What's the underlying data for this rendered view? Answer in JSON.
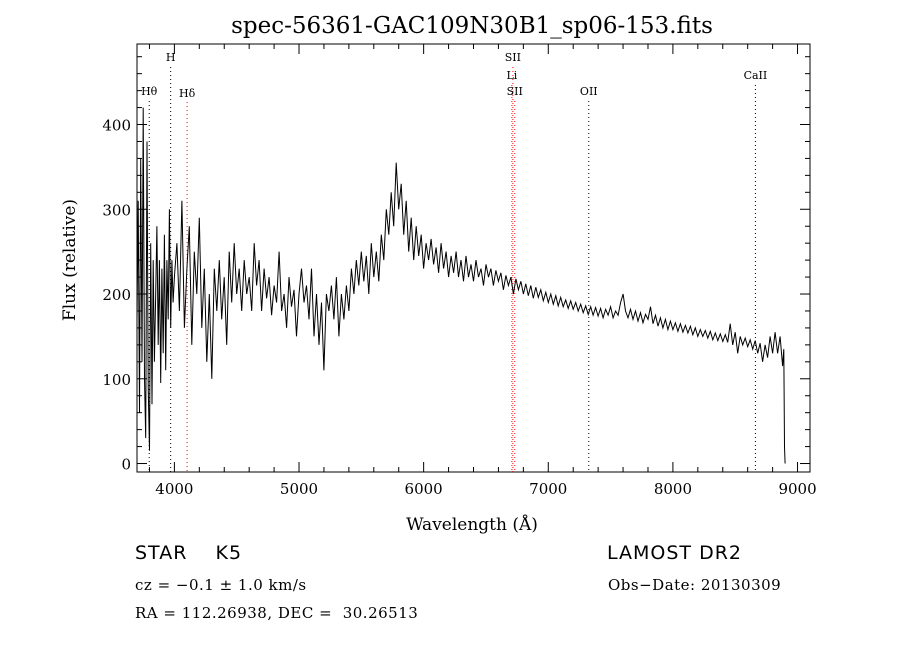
{
  "chart_data": {
    "type": "line",
    "title": "spec-56361-GAC109N30B1_sp06-153.fits",
    "xlabel": "Wavelength (Å)",
    "ylabel": "Flux (relative)",
    "xlim": [
      3700,
      9100
    ],
    "ylim": [
      -10,
      495
    ],
    "x_ticks": [
      4000,
      5000,
      6000,
      7000,
      8000,
      9000
    ],
    "y_ticks": [
      0,
      100,
      200,
      300,
      400
    ],
    "line_color": "#000000",
    "series": [
      {
        "points": [
          [
            3700,
            170
          ],
          [
            3710,
            310
          ],
          [
            3720,
            60
          ],
          [
            3730,
            360
          ],
          [
            3740,
            120
          ],
          [
            3750,
            420
          ],
          [
            3760,
            100
          ],
          [
            3770,
            30
          ],
          [
            3780,
            380
          ],
          [
            3790,
            90
          ],
          [
            3800,
            15
          ],
          [
            3810,
            260
          ],
          [
            3820,
            70
          ],
          [
            3830,
            240
          ],
          [
            3840,
            120
          ],
          [
            3850,
            200
          ],
          [
            3860,
            280
          ],
          [
            3870,
            140
          ],
          [
            3880,
            240
          ],
          [
            3890,
            95
          ],
          [
            3900,
            230
          ],
          [
            3910,
            130
          ],
          [
            3920,
            270
          ],
          [
            3930,
            110
          ],
          [
            3940,
            240
          ],
          [
            3950,
            170
          ],
          [
            3960,
            300
          ],
          [
            3970,
            160
          ],
          [
            3980,
            240
          ],
          [
            3990,
            190
          ],
          [
            4000,
            220
          ],
          [
            4020,
            260
          ],
          [
            4040,
            180
          ],
          [
            4060,
            310
          ],
          [
            4080,
            160
          ],
          [
            4100,
            230
          ],
          [
            4120,
            280
          ],
          [
            4140,
            140
          ],
          [
            4160,
            250
          ],
          [
            4180,
            200
          ],
          [
            4200,
            290
          ],
          [
            4220,
            160
          ],
          [
            4240,
            230
          ],
          [
            4260,
            120
          ],
          [
            4280,
            200
          ],
          [
            4300,
            100
          ],
          [
            4320,
            230
          ],
          [
            4340,
            180
          ],
          [
            4360,
            240
          ],
          [
            4380,
            170
          ],
          [
            4400,
            220
          ],
          [
            4420,
            140
          ],
          [
            4440,
            250
          ],
          [
            4460,
            190
          ],
          [
            4480,
            260
          ],
          [
            4500,
            200
          ],
          [
            4520,
            230
          ],
          [
            4540,
            180
          ],
          [
            4560,
            240
          ],
          [
            4580,
            200
          ],
          [
            4600,
            220
          ],
          [
            4620,
            180
          ],
          [
            4640,
            260
          ],
          [
            4660,
            210
          ],
          [
            4680,
            240
          ],
          [
            4700,
            180
          ],
          [
            4720,
            230
          ],
          [
            4740,
            195
          ],
          [
            4760,
            220
          ],
          [
            4780,
            175
          ],
          [
            4800,
            210
          ],
          [
            4820,
            190
          ],
          [
            4840,
            250
          ],
          [
            4860,
            180
          ],
          [
            4880,
            200
          ],
          [
            4900,
            160
          ],
          [
            4920,
            220
          ],
          [
            4940,
            185
          ],
          [
            4960,
            205
          ],
          [
            4980,
            150
          ],
          [
            5000,
            200
          ],
          [
            5020,
            230
          ],
          [
            5040,
            190
          ],
          [
            5060,
            210
          ],
          [
            5080,
            170
          ],
          [
            5100,
            230
          ],
          [
            5120,
            150
          ],
          [
            5140,
            200
          ],
          [
            5160,
            140
          ],
          [
            5180,
            190
          ],
          [
            5200,
            110
          ],
          [
            5220,
            200
          ],
          [
            5240,
            180
          ],
          [
            5260,
            210
          ],
          [
            5280,
            170
          ],
          [
            5300,
            220
          ],
          [
            5320,
            150
          ],
          [
            5340,
            200
          ],
          [
            5360,
            170
          ],
          [
            5380,
            210
          ],
          [
            5400,
            180
          ],
          [
            5420,
            230
          ],
          [
            5440,
            200
          ],
          [
            5460,
            240
          ],
          [
            5480,
            210
          ],
          [
            5500,
            250
          ],
          [
            5520,
            215
          ],
          [
            5540,
            245
          ],
          [
            5560,
            200
          ],
          [
            5580,
            260
          ],
          [
            5600,
            220
          ],
          [
            5620,
            250
          ],
          [
            5640,
            215
          ],
          [
            5660,
            270
          ],
          [
            5680,
            240
          ],
          [
            5700,
            300
          ],
          [
            5720,
            270
          ],
          [
            5740,
            320
          ],
          [
            5760,
            280
          ],
          [
            5780,
            355
          ],
          [
            5800,
            300
          ],
          [
            5820,
            330
          ],
          [
            5840,
            270
          ],
          [
            5860,
            310
          ],
          [
            5880,
            250
          ],
          [
            5900,
            290
          ],
          [
            5920,
            240
          ],
          [
            5940,
            280
          ],
          [
            5960,
            245
          ],
          [
            5980,
            270
          ],
          [
            6000,
            230
          ],
          [
            6020,
            260
          ],
          [
            6040,
            240
          ],
          [
            6060,
            265
          ],
          [
            6080,
            235
          ],
          [
            6100,
            255
          ],
          [
            6120,
            225
          ],
          [
            6140,
            260
          ],
          [
            6160,
            230
          ],
          [
            6180,
            250
          ],
          [
            6200,
            220
          ],
          [
            6220,
            245
          ],
          [
            6240,
            225
          ],
          [
            6260,
            250
          ],
          [
            6280,
            220
          ],
          [
            6300,
            240
          ],
          [
            6320,
            215
          ],
          [
            6340,
            245
          ],
          [
            6360,
            220
          ],
          [
            6380,
            235
          ],
          [
            6400,
            215
          ],
          [
            6420,
            240
          ],
          [
            6440,
            220
          ],
          [
            6460,
            230
          ],
          [
            6480,
            210
          ],
          [
            6500,
            235
          ],
          [
            6520,
            220
          ],
          [
            6540,
            230
          ],
          [
            6560,
            210
          ],
          [
            6580,
            228
          ],
          [
            6600,
            215
          ],
          [
            6620,
            225
          ],
          [
            6640,
            205
          ],
          [
            6660,
            222
          ],
          [
            6680,
            210
          ],
          [
            6700,
            220
          ],
          [
            6720,
            200
          ],
          [
            6740,
            218
          ],
          [
            6760,
            205
          ],
          [
            6780,
            215
          ],
          [
            6800,
            200
          ],
          [
            6820,
            212
          ],
          [
            6840,
            198
          ],
          [
            6860,
            210
          ],
          [
            6880,
            195
          ],
          [
            6900,
            208
          ],
          [
            6920,
            196
          ],
          [
            6940,
            205
          ],
          [
            6960,
            192
          ],
          [
            6980,
            202
          ],
          [
            7000,
            190
          ],
          [
            7020,
            200
          ],
          [
            7040,
            188
          ],
          [
            7060,
            198
          ],
          [
            7080,
            186
          ],
          [
            7100,
            196
          ],
          [
            7120,
            185
          ],
          [
            7140,
            193
          ],
          [
            7160,
            183
          ],
          [
            7180,
            192
          ],
          [
            7200,
            182
          ],
          [
            7220,
            190
          ],
          [
            7240,
            180
          ],
          [
            7260,
            188
          ],
          [
            7280,
            178
          ],
          [
            7300,
            186
          ],
          [
            7320,
            176
          ],
          [
            7340,
            185
          ],
          [
            7360,
            175
          ],
          [
            7380,
            184
          ],
          [
            7400,
            174
          ],
          [
            7420,
            183
          ],
          [
            7440,
            172
          ],
          [
            7460,
            182
          ],
          [
            7480,
            175
          ],
          [
            7500,
            185
          ],
          [
            7520,
            172
          ],
          [
            7540,
            180
          ],
          [
            7560,
            175
          ],
          [
            7580,
            190
          ],
          [
            7600,
            200
          ],
          [
            7620,
            180
          ],
          [
            7640,
            172
          ],
          [
            7660,
            182
          ],
          [
            7680,
            170
          ],
          [
            7700,
            180
          ],
          [
            7720,
            168
          ],
          [
            7740,
            178
          ],
          [
            7760,
            166
          ],
          [
            7780,
            176
          ],
          [
            7800,
            170
          ],
          [
            7820,
            185
          ],
          [
            7840,
            165
          ],
          [
            7860,
            175
          ],
          [
            7880,
            162
          ],
          [
            7900,
            172
          ],
          [
            7920,
            160
          ],
          [
            7940,
            170
          ],
          [
            7960,
            158
          ],
          [
            7980,
            168
          ],
          [
            8000,
            158
          ],
          [
            8020,
            166
          ],
          [
            8040,
            156
          ],
          [
            8060,
            165
          ],
          [
            8080,
            155
          ],
          [
            8100,
            163
          ],
          [
            8120,
            154
          ],
          [
            8140,
            162
          ],
          [
            8160,
            152
          ],
          [
            8180,
            160
          ],
          [
            8200,
            150
          ],
          [
            8220,
            158
          ],
          [
            8240,
            150
          ],
          [
            8260,
            157
          ],
          [
            8280,
            148
          ],
          [
            8300,
            156
          ],
          [
            8320,
            146
          ],
          [
            8340,
            154
          ],
          [
            8360,
            145
          ],
          [
            8380,
            153
          ],
          [
            8400,
            144
          ],
          [
            8420,
            152
          ],
          [
            8440,
            143
          ],
          [
            8460,
            165
          ],
          [
            8480,
            140
          ],
          [
            8500,
            155
          ],
          [
            8520,
            130
          ],
          [
            8540,
            150
          ],
          [
            8560,
            140
          ],
          [
            8580,
            148
          ],
          [
            8600,
            138
          ],
          [
            8620,
            146
          ],
          [
            8640,
            135
          ],
          [
            8660,
            145
          ],
          [
            8680,
            130
          ],
          [
            8700,
            142
          ],
          [
            8720,
            120
          ],
          [
            8740,
            140
          ],
          [
            8760,
            125
          ],
          [
            8780,
            150
          ],
          [
            8800,
            130
          ],
          [
            8820,
            155
          ],
          [
            8840,
            130
          ],
          [
            8860,
            150
          ],
          [
            8880,
            115
          ],
          [
            8890,
            135
          ],
          [
            8895,
            20
          ],
          [
            8900,
            0
          ]
        ]
      }
    ],
    "lines": [
      {
        "name": "Hθ",
        "x": 3798,
        "color": "#000000",
        "row": 2
      },
      {
        "name": "H",
        "x": 3970,
        "color": "#000000",
        "row": 0
      },
      {
        "name": "Hδ",
        "x": 4102,
        "color": "#ff0000",
        "row": 3
      },
      {
        "name": "SII",
        "x": 6716,
        "color": "#ff0000",
        "row": 0
      },
      {
        "name": "Li",
        "x": 6708,
        "color": "#ff0000",
        "row": 1
      },
      {
        "name": "SII",
        "x": 6731,
        "color": "#ff0000",
        "row": 2
      },
      {
        "name": "OII",
        "x": 7325,
        "color": "#000000",
        "row": 2
      },
      {
        "name": "CaII",
        "x": 8662,
        "color": "#000000",
        "row": 1
      }
    ]
  },
  "info": {
    "object_class": "STAR    K5",
    "survey": "LAMOST DR2",
    "velocity": "cz = −0.1 ± 1.0 km/s",
    "obs_date": "Obs−Date: 20130309",
    "coordinates": "RA = 112.26938, DEC =  30.26513"
  }
}
